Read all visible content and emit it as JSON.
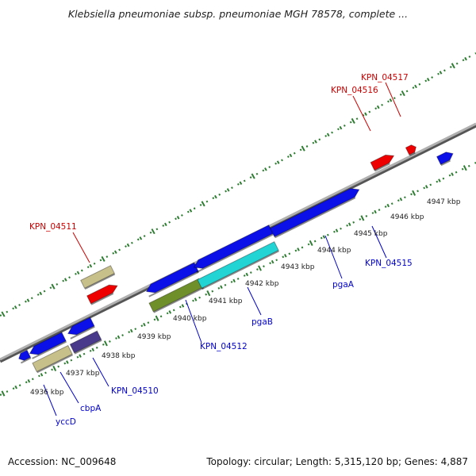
{
  "title": "Klebsiella pneumoniae subsp. pneumoniae MGH 78578, complete ...",
  "footer": {
    "accession": "Accession: NC_009648",
    "topology": "Topology: circular; Length: 5,315,120 bp; Genes: 4,887"
  },
  "colors": {
    "backbone": "#8c8c8c",
    "tick": "#2e7d32",
    "forward_gene_label": "#cc0000",
    "reverse_gene_label": "#0000cc"
  },
  "scale_ticks": [
    {
      "label": "4936 kbp"
    },
    {
      "label": "4937 kbp"
    },
    {
      "label": "4938 kbp"
    },
    {
      "label": "4939 kbp"
    },
    {
      "label": "4940 kbp"
    },
    {
      "label": "4941 kbp"
    },
    {
      "label": "4942 kbp"
    },
    {
      "label": "4943 kbp"
    },
    {
      "label": "4944 kbp"
    },
    {
      "label": "4945 kbp"
    },
    {
      "label": "4946 kbp"
    },
    {
      "label": "4947 kbp"
    }
  ],
  "gene_labels": [
    {
      "text": "KPN_04517",
      "strand": "forward"
    },
    {
      "text": "KPN_04516",
      "strand": "forward"
    },
    {
      "text": "KPN_04511",
      "strand": "forward"
    },
    {
      "text": "KPN_04515",
      "strand": "reverse"
    },
    {
      "text": "pgaA",
      "strand": "reverse"
    },
    {
      "text": "pgaB",
      "strand": "reverse"
    },
    {
      "text": "KPN_04512",
      "strand": "reverse"
    },
    {
      "text": "KPN_04510",
      "strand": "reverse"
    },
    {
      "text": "cbpA",
      "strand": "reverse"
    },
    {
      "text": "yccD",
      "strand": "reverse"
    }
  ],
  "features": [
    {
      "name": "forward-cds-olive",
      "color": "#c8c08a"
    },
    {
      "name": "forward-cds-red",
      "color": "#ee0000"
    },
    {
      "name": "forward-cds-red",
      "color": "#ee0000"
    },
    {
      "name": "forward-cds-red-small",
      "color": "#ee0000"
    },
    {
      "name": "reverse-cds-blue",
      "color": "#0b10e8"
    },
    {
      "name": "reverse-cds-cyan",
      "color": "#22d4d4"
    },
    {
      "name": "reverse-cds-green",
      "color": "#6f8f2a"
    },
    {
      "name": "reverse-cds-purple",
      "color": "#4a3a8c"
    },
    {
      "name": "reverse-cds-khaki",
      "color": "#c8c08a"
    }
  ]
}
